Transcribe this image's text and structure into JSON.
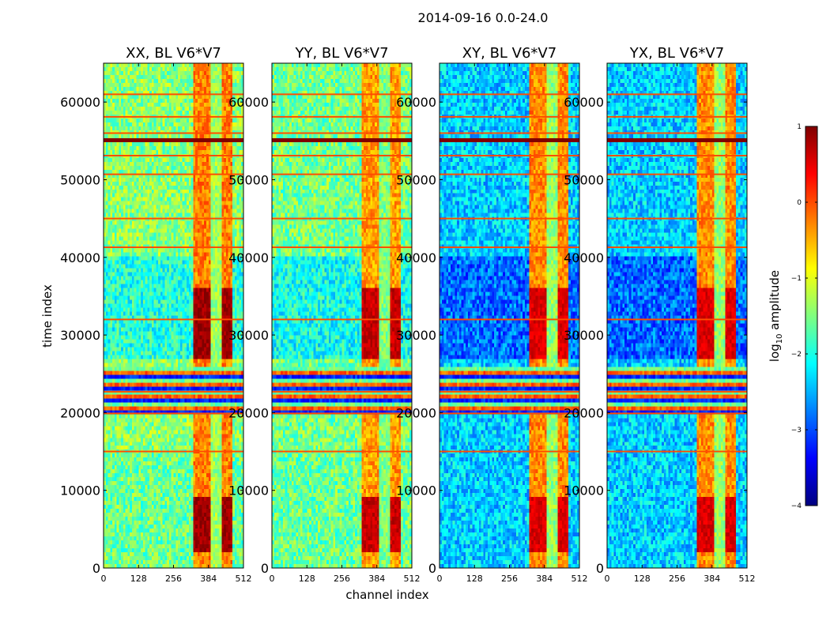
{
  "chart_data": {
    "type": "heatmap",
    "title": "2014-09-16 0.0-24.0",
    "xlabel": "channel index",
    "ylabel": "time index",
    "xlim": [
      0,
      512
    ],
    "ylim": [
      0,
      65000
    ],
    "x_ticks": [
      0,
      128,
      256,
      384,
      512
    ],
    "x_tick_labels": [
      "0",
      "128",
      "256",
      "384",
      "512"
    ],
    "y_ticks": [
      0,
      10000,
      20000,
      30000,
      40000,
      50000,
      60000
    ],
    "y_tick_labels": [
      "0",
      "10000",
      "20000",
      "30000",
      "40000",
      "50000",
      "60000"
    ],
    "colorbar": {
      "label_prefix": "log",
      "label_sub": "10",
      "label_suffix": " amplitude",
      "range": [
        -4,
        1
      ],
      "ticks": [
        -4,
        -3,
        -2,
        -1,
        0,
        1
      ],
      "tick_labels": [
        "−4",
        "−3",
        "−2",
        "−1",
        "0",
        "1"
      ],
      "colormap": [
        "#00007f",
        "#0000ff",
        "#007fff",
        "#00ffff",
        "#7fff7f",
        "#ffff00",
        "#ff7f00",
        "#ff0000",
        "#7f0000"
      ]
    },
    "panels": [
      {
        "title": "XX, BL V6*V7",
        "base": -1.45,
        "hf_level": -1.6,
        "hf_start": 15000,
        "band_peak": 0.85,
        "band_base": -0.75
      },
      {
        "title": "YY, BL V6*V7",
        "base": -1.55,
        "hf_level": -1.6,
        "hf_start": 15000,
        "band_peak": 0.65,
        "band_base": -0.9
      },
      {
        "title": "XY, BL V6*V7",
        "base": -2.35,
        "hf_level": -2.35,
        "hf_start": 15000,
        "band_peak": 0.55,
        "band_base": -0.8
      },
      {
        "title": "YX, BL V6*V7",
        "base": -2.35,
        "hf_level": -2.35,
        "hf_start": 15000,
        "band_peak": 0.55,
        "band_base": -0.8
      }
    ],
    "bright_band_channels": [
      330,
      470
    ],
    "hot_time_ranges": [
      [
        27000,
        36000
      ],
      [
        2000,
        9000
      ]
    ],
    "saturated_rows": [
      [
        54600,
        55600
      ]
    ],
    "striped_time_ranges": [
      [
        19800,
        26000
      ]
    ],
    "horizontal_lines": [
      15000,
      19900,
      22700,
      32000,
      41300,
      45000,
      50700,
      53100,
      56000,
      58100,
      61000
    ]
  }
}
